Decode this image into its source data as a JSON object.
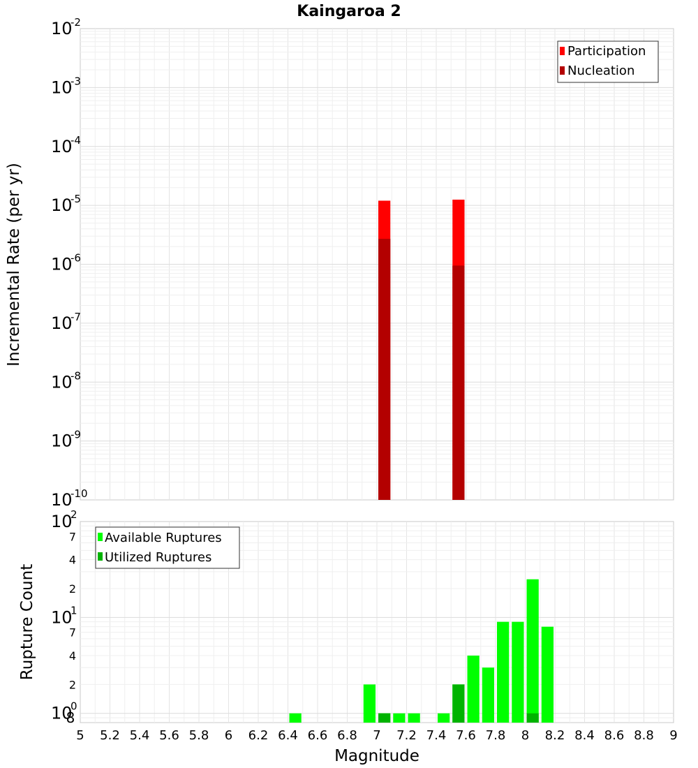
{
  "chart_data": [
    {
      "type": "bar",
      "title": "Kaingaroa 2",
      "xlabel": "",
      "ylabel": "Incremental Rate (per yr)",
      "xlim": [
        5,
        9
      ],
      "ylim": [
        1e-10,
        0.01
      ],
      "yscale": "log",
      "bin_width": 0.1,
      "grid": true,
      "legend_position": "top-right",
      "y_tick_labels": [
        {
          "base": "10",
          "exp": "-10"
        },
        {
          "base": "10",
          "exp": "-9"
        },
        {
          "base": "10",
          "exp": "-8"
        },
        {
          "base": "10",
          "exp": "-7"
        },
        {
          "base": "10",
          "exp": "-6"
        },
        {
          "base": "10",
          "exp": "-5"
        },
        {
          "base": "10",
          "exp": "-4"
        },
        {
          "base": "10",
          "exp": "-3"
        },
        {
          "base": "10",
          "exp": "-2"
        }
      ],
      "series": [
        {
          "name": "Participation",
          "color": "#ff0000",
          "x": [
            7.05,
            7.55
          ],
          "values": [
            1.2e-05,
            1.25e-05
          ]
        },
        {
          "name": "Nucleation",
          "color": "#b30000",
          "x": [
            7.05,
            7.55
          ],
          "values": [
            2.7e-06,
            9.5e-07
          ]
        }
      ]
    },
    {
      "type": "bar",
      "title": "",
      "xlabel": "Magnitude",
      "ylabel": "Rupture Count",
      "xlim": [
        5,
        9
      ],
      "ylim": [
        0.8,
        100
      ],
      "yscale": "log",
      "bin_width": 0.1,
      "grid": true,
      "legend_position": "top-left",
      "x_tick_labels": [
        "5",
        "5.2",
        "5.4",
        "5.6",
        "5.8",
        "6",
        "6.2",
        "6.4",
        "6.6",
        "6.8",
        "7",
        "7.2",
        "7.4",
        "7.6",
        "7.8",
        "8",
        "8.2",
        "8.4",
        "8.6",
        "8.8",
        "9"
      ],
      "y_major_tick_labels": [
        {
          "value": 1,
          "base": "10",
          "exp": "0"
        },
        {
          "value": 10,
          "base": "10",
          "exp": "1"
        },
        {
          "value": 100,
          "base": "10",
          "exp": "2"
        }
      ],
      "y_minor_tick_labels": [
        {
          "value": 0.8,
          "label": "8"
        },
        {
          "value": 2,
          "label": "2"
        },
        {
          "value": 4,
          "label": "4"
        },
        {
          "value": 7,
          "label": "7"
        },
        {
          "value": 20,
          "label": "2"
        },
        {
          "value": 40,
          "label": "4"
        },
        {
          "value": 70,
          "label": "7"
        }
      ],
      "series": [
        {
          "name": "Available Ruptures",
          "color": "#00ff00",
          "x": [
            6.45,
            6.95,
            7.05,
            7.15,
            7.25,
            7.45,
            7.55,
            7.65,
            7.75,
            7.85,
            7.95,
            8.05,
            8.15
          ],
          "values": [
            1,
            2,
            1,
            1,
            1,
            1,
            2,
            4,
            3,
            9,
            9,
            25,
            8
          ]
        },
        {
          "name": "Utilized Ruptures",
          "color": "#00b300",
          "x": [
            7.05,
            7.55,
            8.05
          ],
          "values": [
            1,
            2,
            1
          ]
        }
      ]
    }
  ]
}
